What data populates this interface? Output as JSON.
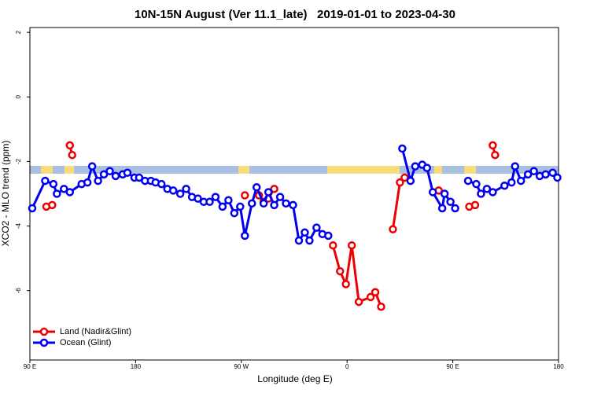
{
  "chart_data": {
    "type": "line",
    "title": "10N-15N August (Ver 11.1_late)   2019-01-01 to 2023-04-30",
    "xlabel": "Longitude (deg E)",
    "ylabel": "XCO2 - MLO trend (ppm)",
    "xlim": [
      90,
      540
    ],
    "xticks": [
      {
        "value": 90,
        "label": "90 E"
      },
      {
        "value": 180,
        "label": "180"
      },
      {
        "value": 270,
        "label": "90 W"
      },
      {
        "value": 360,
        "label": "0"
      },
      {
        "value": 450,
        "label": "90 E"
      },
      {
        "value": 540,
        "label": "180"
      }
    ],
    "ylim": [
      -8.15,
      2.15
    ],
    "yticks": [
      -6,
      -4,
      -2,
      0,
      2
    ],
    "legend": "bottom-left",
    "series": [
      {
        "name": "Land (Nadir&Glint)",
        "color": "#ee0000",
        "x": [
          104,
          109,
          null,
          124,
          126,
          null,
          273,
          null,
          285,
          289,
          293,
          298,
          null,
          348,
          354,
          359,
          364,
          370,
          380,
          384,
          389,
          null,
          399,
          405,
          409,
          null,
          438,
          null,
          464,
          469,
          null,
          484,
          486
        ],
        "values": [
          -3.4,
          -3.35,
          null,
          -1.5,
          -1.8,
          null,
          -3.05,
          null,
          -3.05,
          -3.25,
          -3.15,
          -2.85,
          null,
          -4.6,
          -5.4,
          -5.8,
          -4.6,
          -6.35,
          -6.2,
          -6.05,
          -6.5,
          null,
          -4.1,
          -2.65,
          -2.5,
          null,
          -2.9,
          null,
          -3.4,
          -3.35,
          null,
          -1.5,
          -1.8
        ]
      },
      {
        "name": "Ocean (Glint)",
        "color": "#0000ee",
        "x": [
          92,
          103,
          110,
          113,
          119,
          124,
          134,
          139,
          143,
          148,
          153,
          158,
          163,
          169,
          173,
          179,
          183,
          188,
          193,
          197,
          202,
          207,
          212,
          218,
          223,
          228,
          233,
          238,
          243,
          248,
          254,
          259,
          264,
          269,
          273,
          279,
          283,
          289,
          293,
          298,
          303,
          308,
          314,
          319,
          324,
          328,
          334,
          339,
          344,
          null,
          407,
          414,
          418,
          424,
          428,
          433,
          441,
          443,
          448,
          452,
          null,
          463,
          470,
          474,
          479,
          484,
          494,
          500,
          503,
          508,
          514,
          519,
          524,
          529,
          535,
          539
        ],
        "values": [
          -3.45,
          -2.6,
          -2.7,
          -3.0,
          -2.85,
          -2.95,
          -2.7,
          -2.65,
          -2.15,
          -2.6,
          -2.4,
          -2.3,
          -2.45,
          -2.4,
          -2.35,
          -2.5,
          -2.5,
          -2.6,
          -2.6,
          -2.65,
          -2.7,
          -2.85,
          -2.9,
          -3.0,
          -2.85,
          -3.1,
          -3.15,
          -3.25,
          -3.25,
          -3.1,
          -3.4,
          -3.2,
          -3.6,
          -3.4,
          -4.3,
          -3.3,
          -2.8,
          -3.3,
          -2.95,
          -3.35,
          -3.1,
          -3.3,
          -3.35,
          -4.45,
          -4.2,
          -4.45,
          -4.05,
          -4.25,
          -4.3,
          null,
          -1.6,
          -2.6,
          -2.15,
          -2.1,
          -2.2,
          -2.95,
          -3.45,
          -3.0,
          -3.25,
          -3.45,
          null,
          -2.6,
          -2.7,
          -3.0,
          -2.85,
          -2.95,
          -2.75,
          -2.65,
          -2.15,
          -2.6,
          -2.4,
          -2.3,
          -2.45,
          -2.4,
          -2.35,
          -2.5
        ]
      }
    ]
  }
}
